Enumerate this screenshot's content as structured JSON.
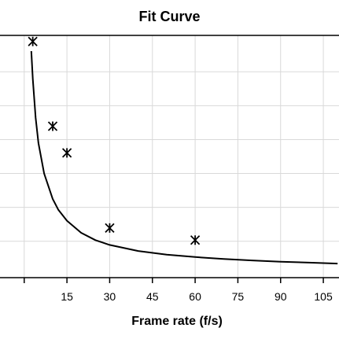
{
  "chart_data": {
    "type": "scatter",
    "title": "Fit Curve",
    "xlabel": "Frame rate (f/s)",
    "ylabel": "",
    "xlim": [
      0,
      110
    ],
    "ylim": [
      0,
      1
    ],
    "x_ticks": [
      15,
      30,
      45,
      60,
      75,
      90,
      105
    ],
    "grid": true,
    "series": [
      {
        "type": "scatter",
        "marker": "x-star",
        "x": [
          3,
          10,
          15,
          30,
          60
        ],
        "y": [
          0.975,
          0.625,
          0.515,
          0.205,
          0.155
        ]
      },
      {
        "type": "line",
        "fit": "hyperbolic",
        "x": [
          2.5,
          3,
          4,
          5,
          7,
          10,
          12,
          15,
          20,
          25,
          30,
          40,
          50,
          60,
          70,
          80,
          90,
          100,
          110
        ],
        "y": [
          0.935,
          0.82,
          0.66,
          0.555,
          0.43,
          0.325,
          0.28,
          0.235,
          0.185,
          0.155,
          0.135,
          0.11,
          0.095,
          0.085,
          0.077,
          0.071,
          0.066,
          0.062,
          0.058
        ]
      }
    ],
    "colors": {
      "marker": "#000000",
      "line": "#000000",
      "grid": "#d9d9d9",
      "axis": "#000000"
    }
  }
}
